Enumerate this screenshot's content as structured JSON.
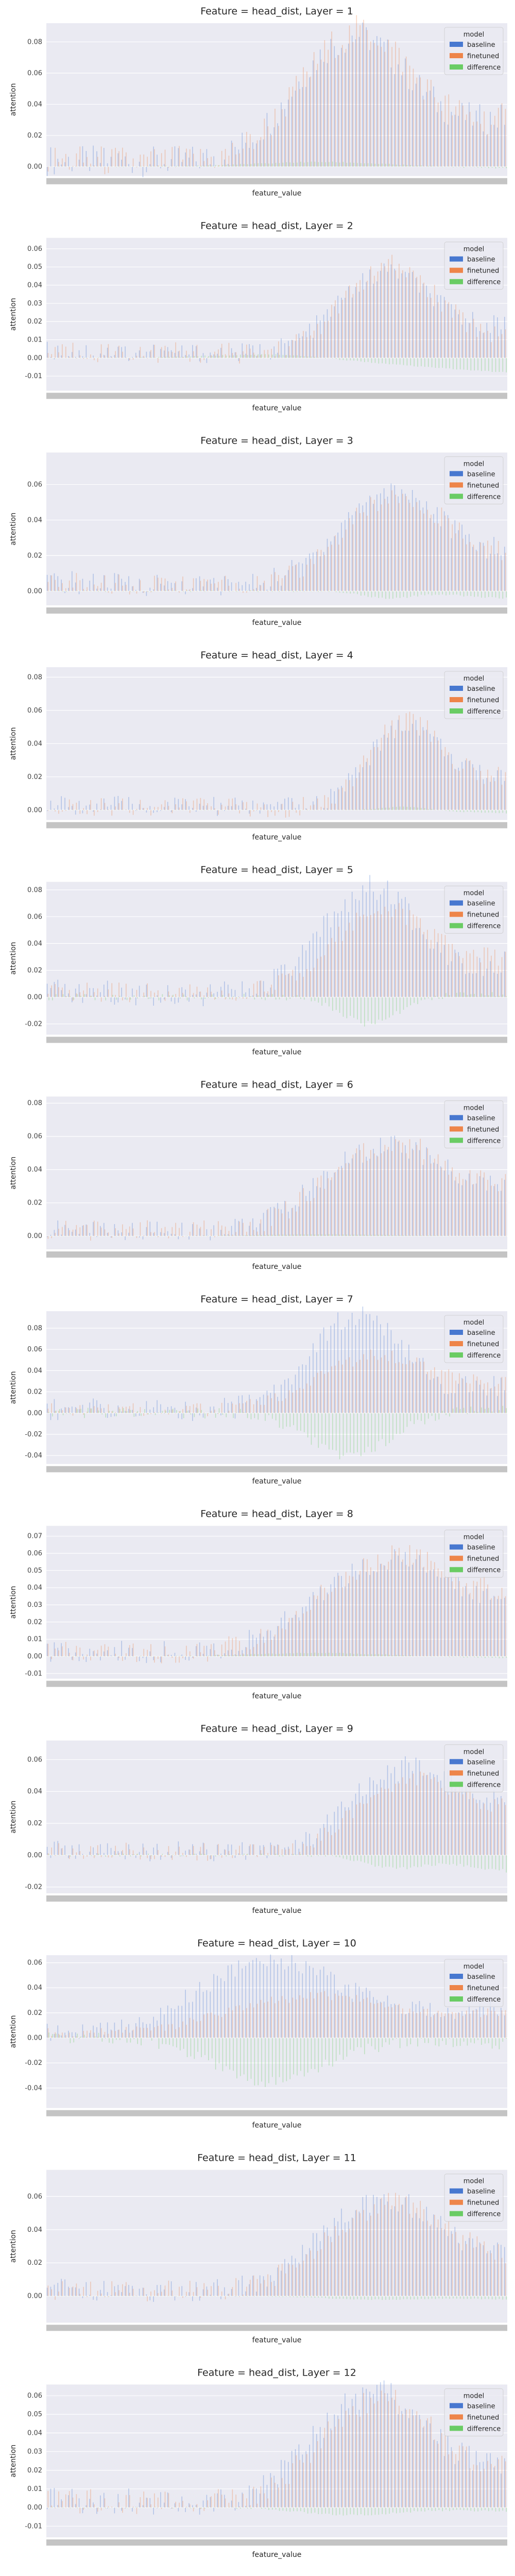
{
  "chart_data": [
    {
      "type": "bar",
      "title": "Feature = head_dist, Layer = 1",
      "xlabel": "feature_value",
      "ylabel": "attention",
      "yticks": [
        0.0,
        0.02,
        0.04,
        0.06,
        0.08
      ],
      "ylim": [
        -0.006,
        0.092
      ],
      "grid": true,
      "legend": {
        "title": "model",
        "position": "top-right",
        "entries": [
          {
            "name": "baseline",
            "color": "#4878d0"
          },
          {
            "name": "finetuned",
            "color": "#ee854a"
          },
          {
            "name": "difference",
            "color": "#6acc64"
          }
        ]
      },
      "categories": [],
      "series": [
        {
          "name": "baseline",
          "peak": 0.08,
          "peak_at": 0.66,
          "width": 0.24,
          "floor": 0.004,
          "tail": 0.03
        },
        {
          "name": "finetuned",
          "peak": 0.083,
          "peak_at": 0.67,
          "width": 0.24,
          "floor": 0.004,
          "tail": 0.029
        },
        {
          "name": "difference",
          "peak": 0.003,
          "peak_at": 0.6,
          "width": 0.3,
          "floor": 0.0,
          "tail": -0.001
        }
      ]
    },
    {
      "type": "bar",
      "title": "Feature = head_dist, Layer = 2",
      "xlabel": "feature_value",
      "ylabel": "attention",
      "yticks": [
        -0.01,
        0.0,
        0.01,
        0.02,
        0.03,
        0.04,
        0.05,
        0.06
      ],
      "ylim": [
        -0.018,
        0.066
      ],
      "grid": true,
      "legend": {
        "title": "model",
        "position": "top-right",
        "entries": [
          {
            "name": "baseline",
            "color": "#4878d0"
          },
          {
            "name": "finetuned",
            "color": "#ee854a"
          },
          {
            "name": "difference",
            "color": "#6acc64"
          }
        ]
      },
      "categories": [],
      "series": [
        {
          "name": "baseline",
          "peak": 0.044,
          "peak_at": 0.73,
          "width": 0.2,
          "floor": 0.004,
          "tail": 0.018
        },
        {
          "name": "finetuned",
          "peak": 0.047,
          "peak_at": 0.74,
          "width": 0.2,
          "floor": 0.004,
          "tail": 0.012
        },
        {
          "name": "difference",
          "peak": 0.002,
          "peak_at": 0.5,
          "width": 0.3,
          "floor": 0.0,
          "tail": -0.008
        }
      ]
    },
    {
      "type": "bar",
      "title": "Feature = head_dist, Layer = 3",
      "xlabel": "feature_value",
      "ylabel": "attention",
      "yticks": [
        0.0,
        0.02,
        0.04,
        0.06
      ],
      "ylim": [
        -0.008,
        0.078
      ],
      "grid": true,
      "legend": {
        "title": "model",
        "position": "top-right",
        "entries": [
          {
            "name": "baseline",
            "color": "#4878d0"
          },
          {
            "name": "finetuned",
            "color": "#ee854a"
          },
          {
            "name": "difference",
            "color": "#6acc64"
          }
        ]
      },
      "categories": [],
      "series": [
        {
          "name": "baseline",
          "peak": 0.053,
          "peak_at": 0.74,
          "width": 0.22,
          "floor": 0.005,
          "tail": 0.02
        },
        {
          "name": "finetuned",
          "peak": 0.05,
          "peak_at": 0.75,
          "width": 0.22,
          "floor": 0.005,
          "tail": 0.018
        },
        {
          "name": "difference",
          "peak": -0.004,
          "peak_at": 0.74,
          "width": 0.1,
          "floor": 0.0,
          "tail": -0.004
        }
      ]
    },
    {
      "type": "bar",
      "title": "Feature = head_dist, Layer = 4",
      "xlabel": "feature_value",
      "ylabel": "attention",
      "yticks": [
        0.0,
        0.02,
        0.04,
        0.06,
        0.08
      ],
      "ylim": [
        -0.006,
        0.086
      ],
      "grid": true,
      "legend": {
        "title": "model",
        "position": "top-right",
        "entries": [
          {
            "name": "baseline",
            "color": "#4878d0"
          },
          {
            "name": "finetuned",
            "color": "#ee854a"
          },
          {
            "name": "difference",
            "color": "#6acc64"
          }
        ]
      },
      "categories": [],
      "series": [
        {
          "name": "baseline",
          "peak": 0.049,
          "peak_at": 0.78,
          "width": 0.16,
          "floor": 0.003,
          "tail": 0.02
        },
        {
          "name": "finetuned",
          "peak": 0.052,
          "peak_at": 0.78,
          "width": 0.16,
          "floor": 0.003,
          "tail": 0.019
        },
        {
          "name": "difference",
          "peak": 0.002,
          "peak_at": 0.78,
          "width": 0.1,
          "floor": 0.0,
          "tail": -0.002
        }
      ]
    },
    {
      "type": "bar",
      "title": "Feature = head_dist, Layer = 5",
      "xlabel": "feature_value",
      "ylabel": "attention",
      "yticks": [
        -0.02,
        0.0,
        0.02,
        0.04,
        0.06,
        0.08
      ],
      "ylim": [
        -0.028,
        0.086
      ],
      "grid": true,
      "legend": {
        "title": "model",
        "position": "top-right",
        "entries": [
          {
            "name": "baseline",
            "color": "#4878d0"
          },
          {
            "name": "finetuned",
            "color": "#ee854a"
          },
          {
            "name": "difference",
            "color": "#6acc64"
          }
        ]
      },
      "categories": [],
      "series": [
        {
          "name": "baseline",
          "peak": 0.078,
          "peak_at": 0.7,
          "width": 0.2,
          "floor": 0.004,
          "tail": 0.025
        },
        {
          "name": "finetuned",
          "peak": 0.06,
          "peak_at": 0.72,
          "width": 0.22,
          "floor": 0.004,
          "tail": 0.028
        },
        {
          "name": "difference",
          "peak": -0.02,
          "peak_at": 0.7,
          "width": 0.12,
          "floor": 0.0,
          "tail": 0.002
        }
      ]
    },
    {
      "type": "bar",
      "title": "Feature = head_dist, Layer = 6",
      "xlabel": "feature_value",
      "ylabel": "attention",
      "yticks": [
        0.0,
        0.02,
        0.04,
        0.06,
        0.08
      ],
      "ylim": [
        -0.008,
        0.084
      ],
      "grid": true,
      "legend": {
        "title": "model",
        "position": "top-right",
        "entries": [
          {
            "name": "baseline",
            "color": "#4878d0"
          },
          {
            "name": "finetuned",
            "color": "#ee854a"
          },
          {
            "name": "difference",
            "color": "#6acc64"
          }
        ]
      },
      "categories": [],
      "series": [
        {
          "name": "baseline",
          "peak": 0.05,
          "peak_at": 0.72,
          "width": 0.26,
          "floor": 0.004,
          "tail": 0.025
        },
        {
          "name": "finetuned",
          "peak": 0.051,
          "peak_at": 0.73,
          "width": 0.26,
          "floor": 0.004,
          "tail": 0.026
        },
        {
          "name": "difference",
          "peak": 0.001,
          "peak_at": 0.6,
          "width": 0.3,
          "floor": 0.0,
          "tail": 0.0
        }
      ]
    },
    {
      "type": "bar",
      "title": "Feature = head_dist, Layer = 7",
      "xlabel": "feature_value",
      "ylabel": "attention",
      "yticks": [
        -0.04,
        -0.02,
        0.0,
        0.02,
        0.04,
        0.06,
        0.08
      ],
      "ylim": [
        -0.048,
        0.096
      ],
      "grid": true,
      "legend": {
        "title": "model",
        "position": "top-right",
        "entries": [
          {
            "name": "baseline",
            "color": "#4878d0"
          },
          {
            "name": "finetuned",
            "color": "#ee854a"
          },
          {
            "name": "difference",
            "color": "#6acc64"
          }
        ]
      },
      "categories": [],
      "series": [
        {
          "name": "baseline",
          "peak": 0.088,
          "peak_at": 0.67,
          "width": 0.2,
          "floor": 0.004,
          "tail": 0.025
        },
        {
          "name": "finetuned",
          "peak": 0.05,
          "peak_at": 0.7,
          "width": 0.24,
          "floor": 0.004,
          "tail": 0.028
        },
        {
          "name": "difference",
          "peak": -0.04,
          "peak_at": 0.66,
          "width": 0.18,
          "floor": 0.0,
          "tail": 0.004
        }
      ]
    },
    {
      "type": "bar",
      "title": "Feature = head_dist, Layer = 8",
      "xlabel": "feature_value",
      "ylabel": "attention",
      "yticks": [
        -0.01,
        0.0,
        0.01,
        0.02,
        0.03,
        0.04,
        0.05,
        0.06,
        0.07
      ],
      "ylim": [
        -0.013,
        0.076
      ],
      "grid": true,
      "legend": {
        "title": "model",
        "position": "top-right",
        "entries": [
          {
            "name": "baseline",
            "color": "#4878d0"
          },
          {
            "name": "finetuned",
            "color": "#ee854a"
          },
          {
            "name": "difference",
            "color": "#6acc64"
          }
        ]
      },
      "categories": [],
      "series": [
        {
          "name": "baseline",
          "peak": 0.052,
          "peak_at": 0.72,
          "width": 0.28,
          "floor": 0.003,
          "tail": 0.028
        },
        {
          "name": "finetuned",
          "peak": 0.054,
          "peak_at": 0.73,
          "width": 0.28,
          "floor": 0.003,
          "tail": 0.03
        },
        {
          "name": "difference",
          "peak": 0.002,
          "peak_at": 0.6,
          "width": 0.3,
          "floor": 0.0,
          "tail": -0.001
        }
      ]
    },
    {
      "type": "bar",
      "title": "Feature = head_dist, Layer = 9",
      "xlabel": "feature_value",
      "ylabel": "attention",
      "yticks": [
        -0.02,
        0.0,
        0.02,
        0.04,
        0.06
      ],
      "ylim": [
        -0.024,
        0.072
      ],
      "grid": true,
      "legend": {
        "title": "model",
        "position": "top-right",
        "entries": [
          {
            "name": "baseline",
            "color": "#4878d0"
          },
          {
            "name": "finetuned",
            "color": "#ee854a"
          },
          {
            "name": "difference",
            "color": "#6acc64"
          }
        ]
      },
      "categories": [],
      "series": [
        {
          "name": "baseline",
          "peak": 0.052,
          "peak_at": 0.77,
          "width": 0.22,
          "floor": 0.003,
          "tail": 0.03
        },
        {
          "name": "finetuned",
          "peak": 0.045,
          "peak_at": 0.78,
          "width": 0.22,
          "floor": 0.003,
          "tail": 0.025
        },
        {
          "name": "difference",
          "peak": -0.008,
          "peak_at": 0.75,
          "width": 0.12,
          "floor": 0.0,
          "tail": -0.01
        }
      ]
    },
    {
      "type": "bar",
      "title": "Feature = head_dist, Layer = 10",
      "xlabel": "feature_value",
      "ylabel": "attention",
      "yticks": [
        -0.04,
        -0.02,
        0.0,
        0.02,
        0.04,
        0.06
      ],
      "ylim": [
        -0.056,
        0.066
      ],
      "grid": true,
      "legend": {
        "title": "model",
        "position": "top-right",
        "entries": [
          {
            "name": "baseline",
            "color": "#4878d0"
          },
          {
            "name": "finetuned",
            "color": "#ee854a"
          },
          {
            "name": "difference",
            "color": "#6acc64"
          }
        ]
      },
      "categories": [],
      "series": [
        {
          "name": "baseline",
          "peak": 0.058,
          "peak_at": 0.48,
          "width": 0.3,
          "floor": 0.004,
          "tail": 0.025
        },
        {
          "name": "finetuned",
          "peak": 0.03,
          "peak_at": 0.55,
          "width": 0.32,
          "floor": 0.004,
          "tail": 0.02
        },
        {
          "name": "difference",
          "peak": -0.035,
          "peak_at": 0.48,
          "width": 0.24,
          "floor": 0.0,
          "tail": -0.005
        }
      ]
    },
    {
      "type": "bar",
      "title": "Feature = head_dist, Layer = 11",
      "xlabel": "feature_value",
      "ylabel": "attention",
      "yticks": [
        0.0,
        0.02,
        0.04,
        0.06
      ],
      "ylim": [
        -0.016,
        0.076
      ],
      "grid": true,
      "legend": {
        "title": "model",
        "position": "top-right",
        "entries": [
          {
            "name": "baseline",
            "color": "#4878d0"
          },
          {
            "name": "finetuned",
            "color": "#ee854a"
          },
          {
            "name": "difference",
            "color": "#6acc64"
          }
        ]
      },
      "categories": [],
      "series": [
        {
          "name": "baseline",
          "peak": 0.054,
          "peak_at": 0.72,
          "width": 0.26,
          "floor": 0.004,
          "tail": 0.02
        },
        {
          "name": "finetuned",
          "peak": 0.052,
          "peak_at": 0.73,
          "width": 0.26,
          "floor": 0.004,
          "tail": 0.02
        },
        {
          "name": "difference",
          "peak": -0.002,
          "peak_at": 0.7,
          "width": 0.2,
          "floor": 0.0,
          "tail": -0.002
        }
      ]
    },
    {
      "type": "bar",
      "title": "Feature = head_dist, Layer = 12",
      "xlabel": "feature_value",
      "ylabel": "attention",
      "yticks": [
        -0.01,
        0.0,
        0.01,
        0.02,
        0.03,
        0.04,
        0.05,
        0.06
      ],
      "ylim": [
        -0.016,
        0.066
      ],
      "grid": true,
      "legend": {
        "title": "model",
        "position": "top-right",
        "entries": [
          {
            "name": "baseline",
            "color": "#4878d0"
          },
          {
            "name": "finetuned",
            "color": "#ee854a"
          },
          {
            "name": "difference",
            "color": "#6acc64"
          }
        ]
      },
      "categories": [],
      "series": [
        {
          "name": "baseline",
          "peak": 0.058,
          "peak_at": 0.7,
          "width": 0.24,
          "floor": 0.004,
          "tail": 0.02
        },
        {
          "name": "finetuned",
          "peak": 0.055,
          "peak_at": 0.71,
          "width": 0.24,
          "floor": 0.004,
          "tail": 0.02
        },
        {
          "name": "difference",
          "peak": -0.004,
          "peak_at": 0.65,
          "width": 0.2,
          "floor": 0.0,
          "tail": -0.002
        }
      ]
    }
  ],
  "background_color": "#eaeaf2",
  "grid_color": "#ffffff"
}
